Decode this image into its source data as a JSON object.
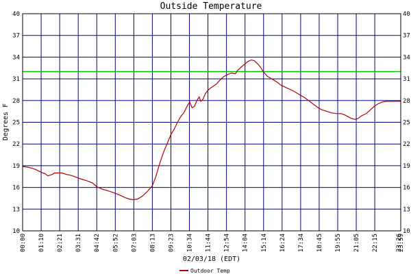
{
  "chart_data": {
    "type": "line",
    "title": "Outside Temperature",
    "xlabel": "02/03/18 (EDT)",
    "ylabel": "Degrees F",
    "y_ticks": [
      10,
      13,
      16,
      19,
      22,
      25,
      28,
      31,
      34,
      37,
      40
    ],
    "ylim": [
      10,
      40
    ],
    "x_ticks": [
      "00:00",
      "01:10",
      "02:21",
      "03:31",
      "04:42",
      "05:52",
      "07:03",
      "08:13",
      "09:23",
      "10:34",
      "11:44",
      "12:54",
      "14:04",
      "15:14",
      "16:24",
      "17:34",
      "18:45",
      "19:55",
      "21:05",
      "22:15",
      "23:26",
      "23:59"
    ],
    "xlim_hours": [
      0,
      23.983
    ],
    "grid": true,
    "reference_line": {
      "value": 32,
      "color": "#00c000"
    },
    "series": [
      {
        "name": "Outdoor Temp",
        "color": "#b00000",
        "points": [
          [
            0.0,
            18.9
          ],
          [
            0.33,
            18.8
          ],
          [
            0.67,
            18.6
          ],
          [
            0.9,
            18.4
          ],
          [
            1.17,
            18.1
          ],
          [
            1.42,
            17.9
          ],
          [
            1.6,
            17.6
          ],
          [
            1.75,
            17.7
          ],
          [
            1.9,
            17.8
          ],
          [
            2.0,
            18.0
          ],
          [
            2.2,
            18.0
          ],
          [
            2.5,
            18.0
          ],
          [
            2.75,
            17.8
          ],
          [
            3.0,
            17.7
          ],
          [
            3.3,
            17.5
          ],
          [
            3.52,
            17.3
          ],
          [
            3.8,
            17.1
          ],
          [
            4.1,
            16.9
          ],
          [
            4.45,
            16.6
          ],
          [
            4.7,
            16.1
          ],
          [
            5.0,
            15.8
          ],
          [
            5.3,
            15.6
          ],
          [
            5.6,
            15.4
          ],
          [
            5.87,
            15.2
          ],
          [
            6.2,
            14.9
          ],
          [
            6.5,
            14.6
          ],
          [
            6.75,
            14.4
          ],
          [
            7.05,
            14.3
          ],
          [
            7.3,
            14.4
          ],
          [
            7.6,
            14.8
          ],
          [
            7.85,
            15.3
          ],
          [
            8.22,
            16.2
          ],
          [
            8.45,
            17.5
          ],
          [
            8.65,
            19.0
          ],
          [
            8.85,
            20.3
          ],
          [
            9.0,
            21.2
          ],
          [
            9.2,
            22.2
          ],
          [
            9.4,
            23.3
          ],
          [
            9.6,
            24.0
          ],
          [
            9.8,
            24.9
          ],
          [
            10.0,
            25.7
          ],
          [
            10.25,
            26.4
          ],
          [
            10.45,
            27.3
          ],
          [
            10.6,
            27.8
          ],
          [
            10.75,
            27.0
          ],
          [
            10.9,
            27.2
          ],
          [
            11.05,
            28.0
          ],
          [
            11.2,
            28.5
          ],
          [
            11.3,
            27.9
          ],
          [
            11.45,
            28.2
          ],
          [
            11.6,
            29.0
          ],
          [
            11.75,
            29.4
          ],
          [
            11.9,
            29.7
          ],
          [
            12.1,
            30.0
          ],
          [
            12.3,
            30.3
          ],
          [
            12.5,
            30.8
          ],
          [
            12.75,
            31.3
          ],
          [
            13.0,
            31.6
          ],
          [
            13.25,
            31.8
          ],
          [
            13.5,
            31.7
          ],
          [
            13.65,
            32.2
          ],
          [
            13.85,
            32.6
          ],
          [
            14.07,
            33.0
          ],
          [
            14.3,
            33.4
          ],
          [
            14.5,
            33.6
          ],
          [
            14.7,
            33.5
          ],
          [
            14.9,
            33.1
          ],
          [
            15.1,
            32.6
          ],
          [
            15.23,
            32.1
          ],
          [
            15.5,
            31.4
          ],
          [
            15.8,
            31.0
          ],
          [
            16.1,
            30.6
          ],
          [
            16.4,
            30.1
          ],
          [
            16.8,
            29.7
          ],
          [
            17.2,
            29.3
          ],
          [
            17.57,
            28.8
          ],
          [
            17.9,
            28.4
          ],
          [
            18.2,
            27.9
          ],
          [
            18.5,
            27.4
          ],
          [
            18.75,
            27.0
          ],
          [
            19.0,
            26.7
          ],
          [
            19.3,
            26.5
          ],
          [
            19.6,
            26.3
          ],
          [
            19.92,
            26.2
          ],
          [
            20.2,
            26.2
          ],
          [
            20.45,
            26.0
          ],
          [
            20.7,
            25.7
          ],
          [
            20.9,
            25.5
          ],
          [
            21.08,
            25.4
          ],
          [
            21.25,
            25.5
          ],
          [
            21.5,
            25.9
          ],
          [
            21.8,
            26.2
          ],
          [
            22.0,
            26.6
          ],
          [
            22.25,
            27.1
          ],
          [
            22.5,
            27.5
          ],
          [
            22.8,
            27.8
          ],
          [
            23.1,
            27.9
          ],
          [
            23.45,
            27.9
          ],
          [
            23.983,
            27.9
          ]
        ]
      }
    ],
    "legend_placement": "bottom-center"
  }
}
